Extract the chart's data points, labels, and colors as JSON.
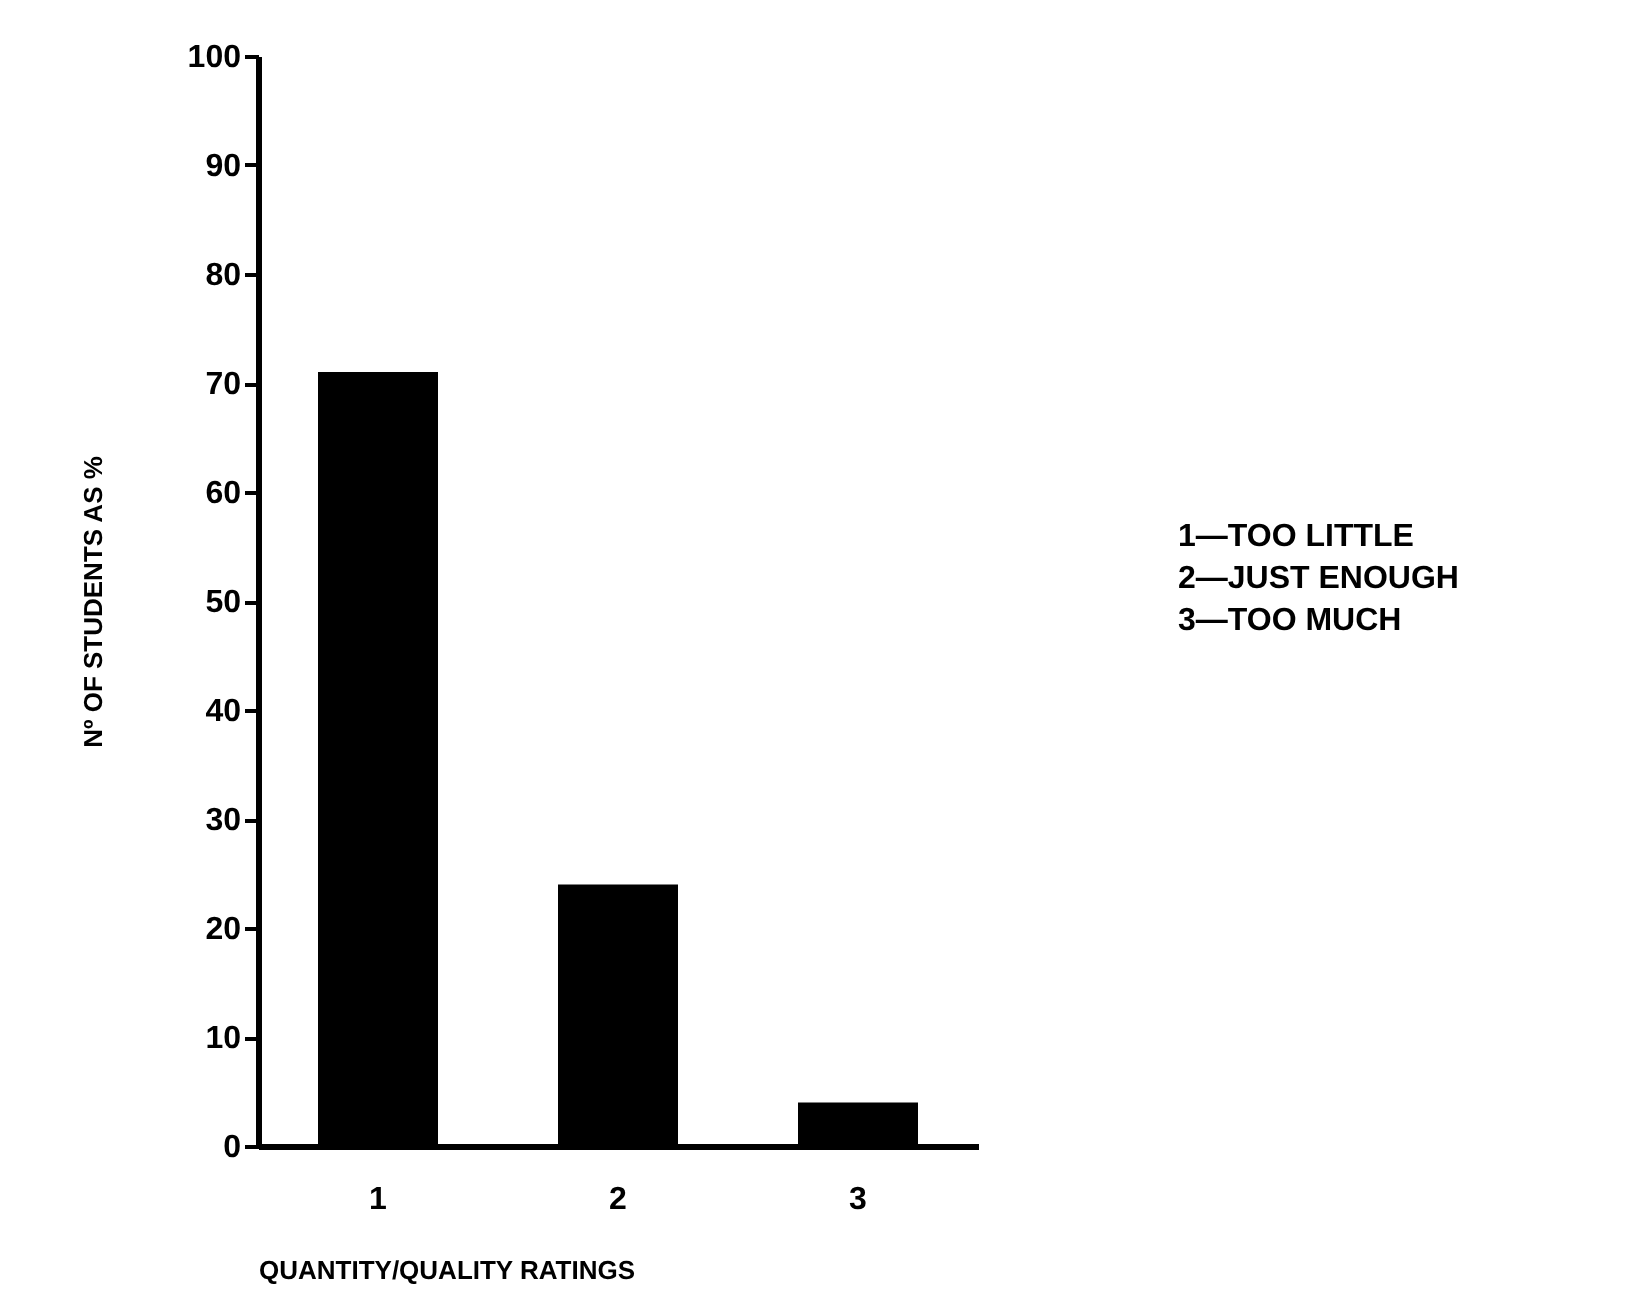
{
  "chart_data": {
    "type": "bar",
    "xlabel": "QUANTITY/QUALITY RATINGS",
    "ylabel": "Nº OF STUDENTS AS %",
    "categories": [
      "1",
      "2",
      "3"
    ],
    "values": [
      71,
      24,
      4
    ],
    "color": "#000000",
    "ylim": [
      0,
      100
    ],
    "yticks": [
      0,
      10,
      20,
      30,
      40,
      50,
      60,
      70,
      80,
      90,
      100
    ],
    "grid": false,
    "annotations": [
      "1—TOO LITTLE",
      "2—JUST ENOUGH",
      "3—TOO MUCH"
    ]
  }
}
